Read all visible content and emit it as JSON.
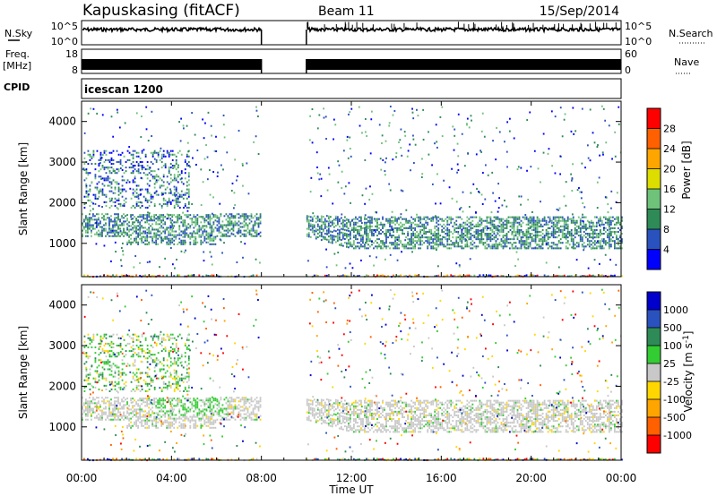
{
  "header": {
    "station": "Kapuskasing (fitACF)",
    "beam": "Beam 11",
    "date": "15/Sep/2014"
  },
  "noise_panel": {
    "left_label": "N.Sky",
    "left_ticks": [
      "10^5",
      "10^0"
    ],
    "right_label": "N.Search",
    "right_ticks": [
      "10^5",
      "10^0"
    ]
  },
  "freq_panel": {
    "left_label_1": "Freq.",
    "left_label_2": "[MHz]",
    "left_ticks": [
      "18",
      "8"
    ],
    "right_label": "Nave",
    "right_ticks": [
      "60",
      "0"
    ]
  },
  "cpid_panel": {
    "label": "CPID",
    "value": "icescan 1200"
  },
  "chart_data": [
    {
      "type": "heatmap",
      "title": "",
      "parameter": "Power",
      "ylabel": "Slant Range [km]",
      "xlabel": "",
      "x_ticks": [
        "00:00",
        "04:00",
        "08:00",
        "12:00",
        "16:00",
        "20:00",
        "00:00"
      ],
      "y_ticks": [
        "1000",
        "2000",
        "3000",
        "4000"
      ],
      "ylim": [
        180,
        4500
      ],
      "xlim_hours": [
        0,
        24
      ],
      "data_gap_hours": [
        8,
        10
      ],
      "colorbar": {
        "label": "Power [dB]",
        "ticks": [
          "4",
          "8",
          "12",
          "16",
          "20",
          "24",
          "28"
        ],
        "colors": [
          "#0000ff",
          "#2a52be",
          "#2e8b57",
          "#6fc27a",
          "#dddd00",
          "#ffa500",
          "#ff6000",
          "#ff0000"
        ]
      }
    },
    {
      "type": "heatmap",
      "title": "",
      "parameter": "Velocity",
      "ylabel": "Slant Range [km]",
      "xlabel": "Time UT",
      "x_ticks": [
        "00:00",
        "04:00",
        "08:00",
        "12:00",
        "16:00",
        "20:00",
        "00:00"
      ],
      "y_ticks": [
        "1000",
        "2000",
        "3000",
        "4000"
      ],
      "ylim": [
        180,
        4500
      ],
      "xlim_hours": [
        0,
        24
      ],
      "data_gap_hours": [
        8,
        10
      ],
      "colorbar": {
        "label_main": "Velocity  [m s",
        "label_sup": "-1",
        "label_end": "]",
        "ticks": [
          "1000",
          "500",
          "100",
          "25",
          "-25",
          "-100",
          "-500",
          "-1000"
        ],
        "colors": [
          "#0000cc",
          "#2a52be",
          "#2e8b57",
          "#33cc33",
          "#c8c8c8",
          "#ffd700",
          "#ffa500",
          "#ff6000",
          "#ff0000"
        ]
      }
    }
  ]
}
